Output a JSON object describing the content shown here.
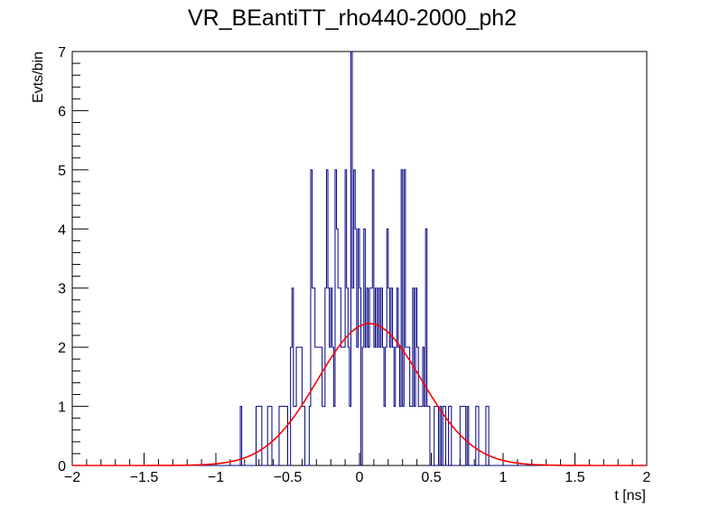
{
  "chart_data": {
    "type": "histogram",
    "title": "VR_BEantiTT_rho440-2000_ph2",
    "xlabel": "t [ns]",
    "ylabel": "Evts/bin",
    "xlim": [
      -2,
      2
    ],
    "ylim": [
      0,
      7
    ],
    "x_ticks": [
      -2,
      -1.5,
      -1,
      -0.5,
      0,
      0.5,
      1,
      1.5,
      2
    ],
    "x_tick_labels": [
      "−2",
      "−1.5",
      "−1",
      "−0.5",
      "0",
      "0.5",
      "1",
      "1.5",
      "2"
    ],
    "y_ticks": [
      0,
      1,
      2,
      3,
      4,
      5,
      6,
      7
    ],
    "y_tick_labels": [
      "0",
      "1",
      "2",
      "3",
      "4",
      "5",
      "6",
      "7"
    ],
    "bins": {
      "min": -2,
      "max": 2,
      "count": 400
    },
    "nonzero_bins": [
      [
        -0.83,
        1
      ],
      [
        -0.72,
        1
      ],
      [
        -0.71,
        1
      ],
      [
        -0.7,
        1
      ],
      [
        -0.69,
        1
      ],
      [
        -0.64,
        1
      ],
      [
        -0.63,
        1
      ],
      [
        -0.62,
        1
      ],
      [
        -0.56,
        1
      ],
      [
        -0.55,
        1
      ],
      [
        -0.54,
        1
      ],
      [
        -0.53,
        1
      ],
      [
        -0.52,
        1
      ],
      [
        -0.51,
        1
      ],
      [
        -0.48,
        2
      ],
      [
        -0.47,
        3
      ],
      [
        -0.46,
        1
      ],
      [
        -0.45,
        1
      ],
      [
        -0.44,
        2
      ],
      [
        -0.43,
        2
      ],
      [
        -0.42,
        2
      ],
      [
        -0.41,
        2
      ],
      [
        -0.4,
        1
      ],
      [
        -0.39,
        1
      ],
      [
        -0.35,
        1
      ],
      [
        -0.34,
        5
      ],
      [
        -0.33,
        3
      ],
      [
        -0.32,
        3
      ],
      [
        -0.31,
        2
      ],
      [
        -0.3,
        2
      ],
      [
        -0.29,
        2
      ],
      [
        -0.28,
        2
      ],
      [
        -0.27,
        2
      ],
      [
        -0.26,
        1
      ],
      [
        -0.25,
        1
      ],
      [
        -0.24,
        3
      ],
      [
        -0.23,
        5
      ],
      [
        -0.22,
        3
      ],
      [
        -0.21,
        2
      ],
      [
        -0.2,
        3
      ],
      [
        -0.19,
        2
      ],
      [
        -0.18,
        1
      ],
      [
        -0.17,
        5
      ],
      [
        -0.16,
        4
      ],
      [
        -0.15,
        3
      ],
      [
        -0.14,
        3
      ],
      [
        -0.13,
        2
      ],
      [
        -0.12,
        2
      ],
      [
        -0.11,
        2
      ],
      [
        -0.1,
        5
      ],
      [
        -0.09,
        3
      ],
      [
        -0.08,
        2
      ],
      [
        -0.07,
        1
      ],
      [
        -0.06,
        7
      ],
      [
        -0.05,
        3
      ],
      [
        -0.04,
        5
      ],
      [
        -0.03,
        4
      ],
      [
        -0.02,
        2
      ],
      [
        -0.01,
        4
      ],
      [
        0.0,
        3
      ],
      [
        0.01,
        0
      ],
      [
        0.02,
        2
      ],
      [
        0.03,
        4
      ],
      [
        0.04,
        2
      ],
      [
        0.05,
        3
      ],
      [
        0.06,
        2
      ],
      [
        0.07,
        3
      ],
      [
        0.08,
        3
      ],
      [
        0.09,
        5
      ],
      [
        0.1,
        2
      ],
      [
        0.11,
        3
      ],
      [
        0.12,
        2
      ],
      [
        0.13,
        3
      ],
      [
        0.14,
        2
      ],
      [
        0.15,
        3
      ],
      [
        0.16,
        2
      ],
      [
        0.17,
        1
      ],
      [
        0.18,
        2
      ],
      [
        0.19,
        4
      ],
      [
        0.2,
        3
      ],
      [
        0.21,
        2
      ],
      [
        0.22,
        3
      ],
      [
        0.23,
        2
      ],
      [
        0.24,
        1
      ],
      [
        0.25,
        2
      ],
      [
        0.26,
        3
      ],
      [
        0.27,
        2
      ],
      [
        0.28,
        1
      ],
      [
        0.29,
        5
      ],
      [
        0.3,
        1
      ],
      [
        0.31,
        5
      ],
      [
        0.32,
        2
      ],
      [
        0.33,
        2
      ],
      [
        0.34,
        2
      ],
      [
        0.35,
        1
      ],
      [
        0.36,
        1
      ],
      [
        0.37,
        3
      ],
      [
        0.38,
        1
      ],
      [
        0.39,
        3
      ],
      [
        0.4,
        2
      ],
      [
        0.41,
        1
      ],
      [
        0.42,
        1
      ],
      [
        0.43,
        1
      ],
      [
        0.44,
        2
      ],
      [
        0.45,
        1
      ],
      [
        0.46,
        4
      ],
      [
        0.47,
        1
      ],
      [
        0.48,
        1
      ],
      [
        0.52,
        1
      ],
      [
        0.53,
        1
      ],
      [
        0.54,
        1
      ],
      [
        0.56,
        1
      ],
      [
        0.58,
        1
      ],
      [
        0.59,
        1
      ],
      [
        0.62,
        1
      ],
      [
        0.63,
        1
      ],
      [
        0.7,
        1
      ],
      [
        0.71,
        1
      ],
      [
        0.72,
        1
      ],
      [
        0.73,
        1
      ],
      [
        0.75,
        1
      ],
      [
        0.81,
        1
      ],
      [
        0.82,
        1
      ],
      [
        0.88,
        1
      ],
      [
        0.89,
        1
      ]
    ],
    "fit": {
      "type": "gaussian",
      "amplitude": 2.4,
      "mean": 0.07,
      "sigma": 0.36
    },
    "colors": {
      "histogram": "#000080",
      "fit": "#ff0000",
      "axis": "#000000"
    },
    "grid": false,
    "legend": "none"
  }
}
